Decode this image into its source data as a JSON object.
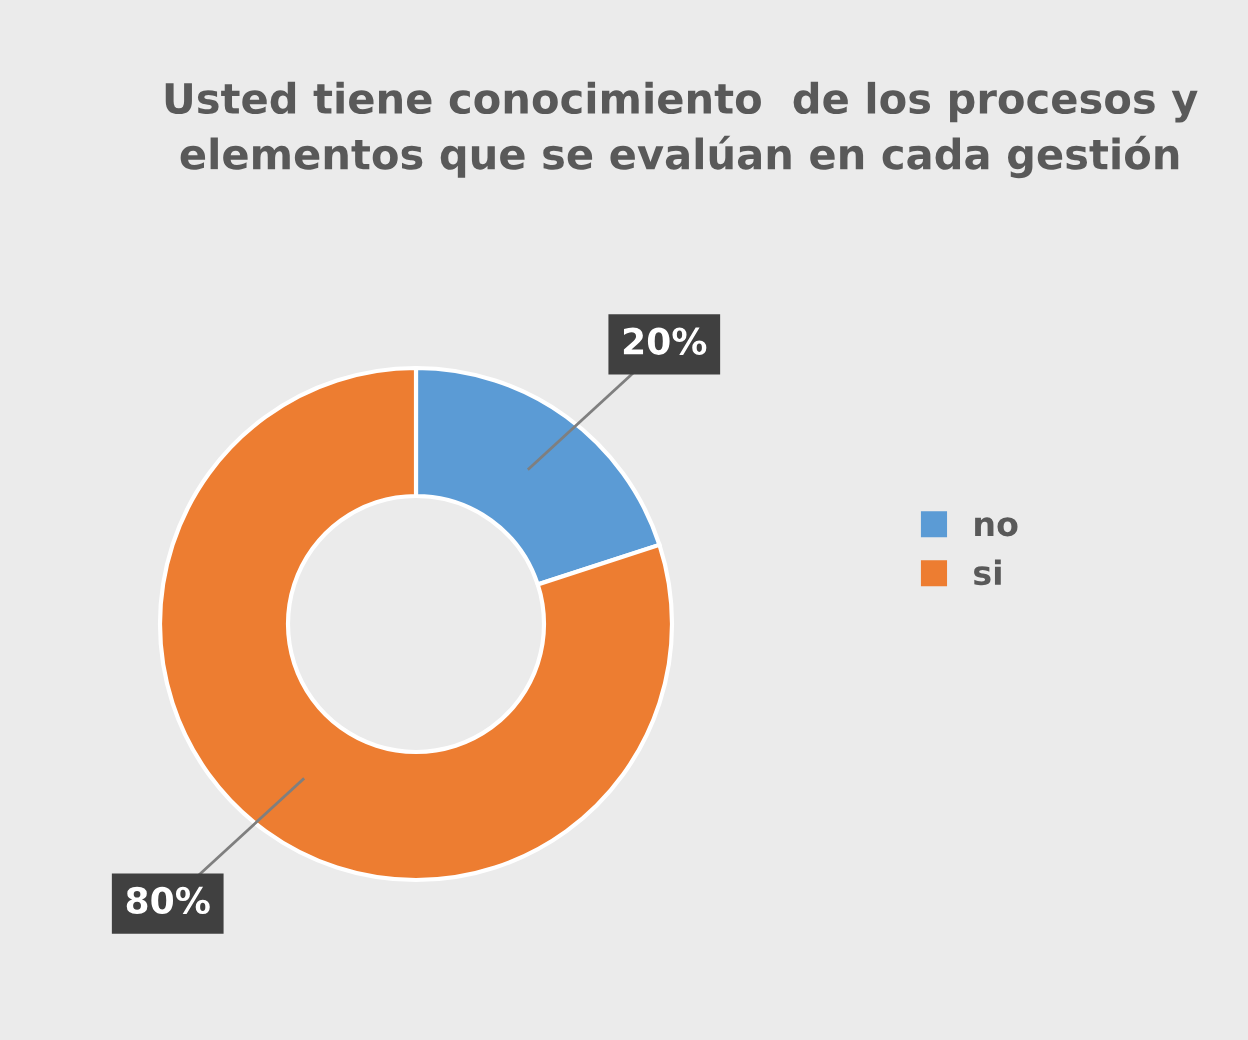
{
  "chart_data": {
    "type": "donut",
    "title": "Usted tiene conocimiento  de los procesos y\nelementos que se evalúan en cada gestión",
    "categories": [
      "no",
      "si"
    ],
    "values": [
      20,
      80
    ],
    "colors": [
      "#5b9bd5",
      "#ed7d31"
    ],
    "value_labels": [
      "20%",
      "80%"
    ],
    "legend": "right"
  }
}
